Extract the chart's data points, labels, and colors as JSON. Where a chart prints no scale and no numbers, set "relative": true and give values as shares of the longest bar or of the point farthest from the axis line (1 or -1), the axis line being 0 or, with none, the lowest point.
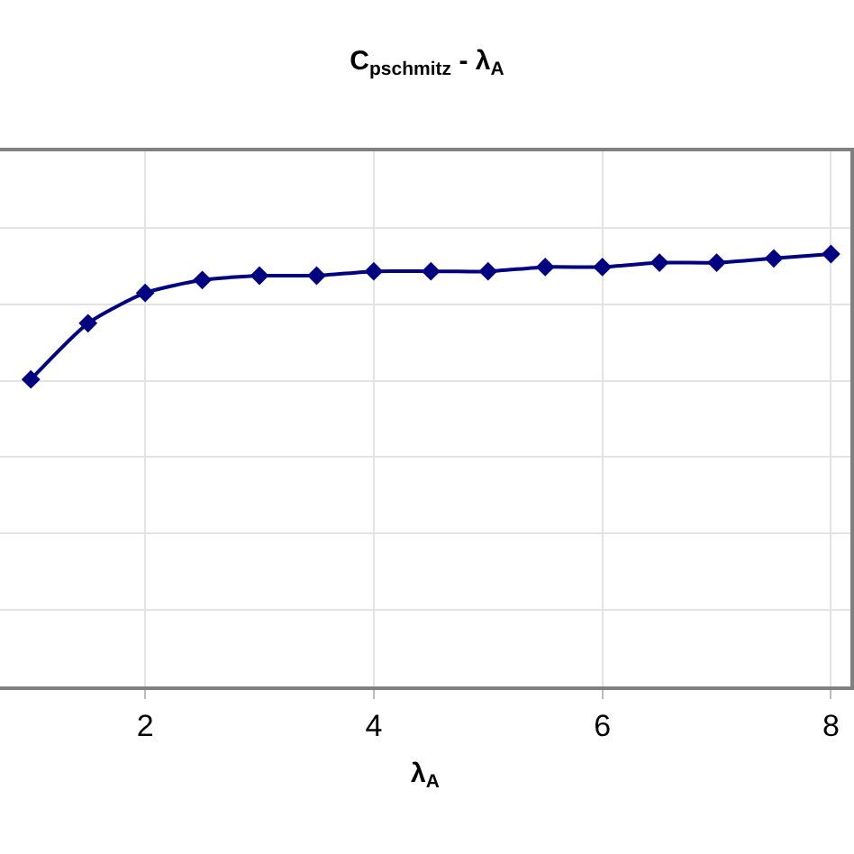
{
  "chart_data": {
    "type": "line",
    "title": "C$_{pschmitz}$ - λ$_{A}$",
    "xlabel": "λ$_{A}$",
    "relative": true,
    "x": [
      1.0,
      1.5,
      2.0,
      2.5,
      3.0,
      3.5,
      4.0,
      4.5,
      5.0,
      5.5,
      6.0,
      6.5,
      7.0,
      7.5,
      8.0
    ],
    "series": [
      {
        "color": "#000080",
        "values": [
          0.71,
          0.84,
          0.91,
          0.94,
          0.95,
          0.95,
          0.96,
          0.96,
          0.96,
          0.97,
          0.97,
          0.98,
          0.98,
          0.99,
          1.0
        ]
      }
    ],
    "xlim": [
      0.73,
      8.17
    ],
    "xticks": [
      2,
      4,
      6,
      8
    ],
    "grid": true,
    "legend": false,
    "marker": "diamond",
    "line_style": "solid"
  }
}
